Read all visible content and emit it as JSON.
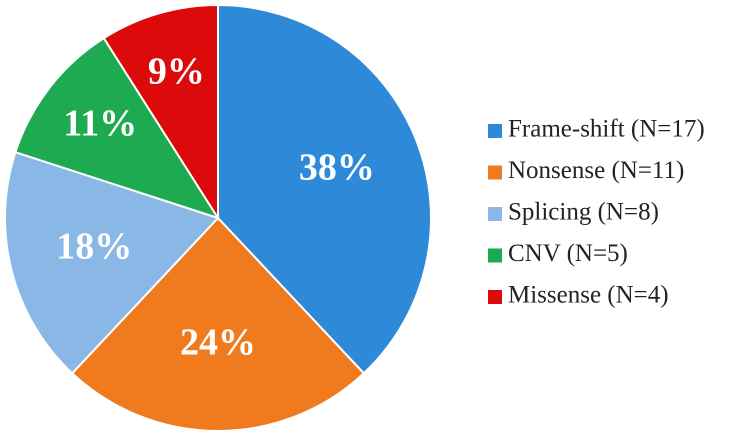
{
  "chart_data": {
    "type": "pie",
    "categories": [
      "Frame-shift (N=17)",
      "Nonsense (N=11)",
      "Splicing (N=8)",
      "CNV (N=5)",
      "Missense (N=4)"
    ],
    "values": [
      38,
      24,
      18,
      11,
      9
    ],
    "value_labels": [
      "38%",
      "24%",
      "18%",
      "11%",
      "9%"
    ],
    "colors": [
      "#2e8ad8",
      "#f07b1e",
      "#8ab8e6",
      "#1eaa50",
      "#dc0a0a"
    ],
    "legend": "right"
  }
}
